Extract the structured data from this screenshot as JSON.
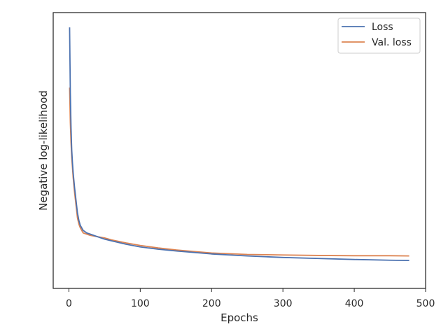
{
  "chart_data": {
    "type": "line",
    "title": "",
    "xlabel": "Epochs",
    "ylabel": "Negative log-likelihood",
    "xlim": [
      -22,
      500
    ],
    "ylim": [
      0.0,
      1.0
    ],
    "xticks": [
      0,
      100,
      200,
      300,
      400,
      500
    ],
    "yticks_shown": false,
    "grid": false,
    "legend_position": "top-right",
    "series": [
      {
        "name": "Loss",
        "color": "#4c72b0",
        "x": [
          1,
          2,
          3,
          4,
          5,
          6,
          8,
          10,
          12,
          14,
          16,
          18,
          20,
          25,
          30,
          40,
          50,
          60,
          80,
          100,
          125,
          150,
          175,
          200,
          250,
          300,
          350,
          400,
          450,
          477
        ],
        "y": [
          0.98,
          0.72,
          0.58,
          0.49,
          0.44,
          0.4,
          0.34,
          0.29,
          0.24,
          0.21,
          0.19,
          0.18,
          0.17,
          0.16,
          0.155,
          0.145,
          0.135,
          0.128,
          0.115,
          0.104,
          0.095,
          0.088,
          0.082,
          0.076,
          0.068,
          0.062,
          0.058,
          0.054,
          0.051,
          0.05
        ]
      },
      {
        "name": "Val. loss",
        "color": "#dd8452",
        "x": [
          1,
          2,
          3,
          4,
          5,
          6,
          8,
          10,
          12,
          14,
          16,
          18,
          20,
          25,
          30,
          40,
          50,
          60,
          80,
          100,
          125,
          150,
          175,
          200,
          250,
          300,
          350,
          400,
          450,
          477
        ],
        "y": [
          0.74,
          0.6,
          0.52,
          0.46,
          0.42,
          0.38,
          0.32,
          0.27,
          0.22,
          0.195,
          0.18,
          0.17,
          0.16,
          0.155,
          0.15,
          0.145,
          0.14,
          0.132,
          0.12,
          0.11,
          0.1,
          0.092,
          0.086,
          0.08,
          0.074,
          0.072,
          0.07,
          0.069,
          0.069,
          0.068
        ]
      }
    ]
  }
}
